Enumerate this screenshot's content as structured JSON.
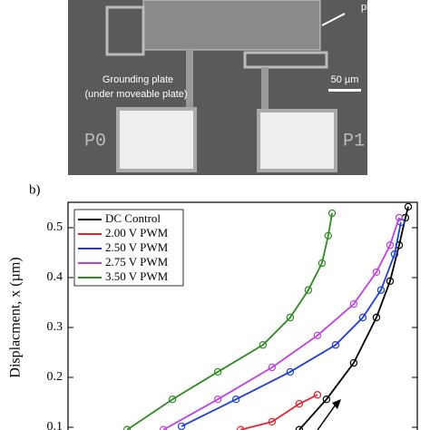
{
  "image": {
    "labels": [
      "plate",
      "Grounding plate",
      "(under moveable plate)",
      "50 µm",
      "P0",
      "P1"
    ]
  },
  "panel_label": "b)",
  "chart_data": {
    "type": "line",
    "ylabel": "Displacment, x (µm)",
    "xlim": [
      0,
      100
    ],
    "ylim": [
      0.09,
      0.55
    ],
    "yticks": [
      0.1,
      0.2,
      0.3,
      0.4,
      0.5
    ],
    "legend": "upper left",
    "series": [
      {
        "name": "DC Control",
        "color": "#000000",
        "x": [
          66.2,
          74.0,
          81.8,
          88.3,
          92.2,
          94.8,
          96.6,
          97.4
        ],
        "values": [
          0.095,
          0.156,
          0.229,
          0.32,
          0.393,
          0.465,
          0.52,
          0.542
        ]
      },
      {
        "name": "2.00 V PWM",
        "color": "#e8202a",
        "x": [
          49.4,
          58.4,
          66.2,
          71.4
        ],
        "values": [
          0.095,
          0.111,
          0.147,
          0.165
        ]
      },
      {
        "name": "2.50 V PWM",
        "color": "#1f3fd0",
        "x": [
          32.5,
          48.1,
          63.6,
          76.6,
          84.4,
          89.6,
          93.5,
          95.3
        ],
        "values": [
          0.102,
          0.156,
          0.211,
          0.265,
          0.32,
          0.375,
          0.447,
          0.511
        ]
      },
      {
        "name": "2.75 V PWM",
        "color": "#c040e0",
        "x": [
          27.3,
          42.9,
          58.4,
          71.4,
          81.8,
          88.3,
          92.2,
          94.8
        ],
        "values": [
          0.095,
          0.156,
          0.22,
          0.284,
          0.347,
          0.411,
          0.465,
          0.52
        ]
      },
      {
        "name": "3.50 V PWM",
        "color": "#2e8b22",
        "x": [
          16.9,
          29.9,
          42.9,
          55.8,
          63.6,
          68.8,
          72.7,
          74.5,
          75.6
        ],
        "values": [
          0.095,
          0.156,
          0.211,
          0.265,
          0.32,
          0.375,
          0.429,
          0.484,
          0.529
        ]
      }
    ]
  }
}
